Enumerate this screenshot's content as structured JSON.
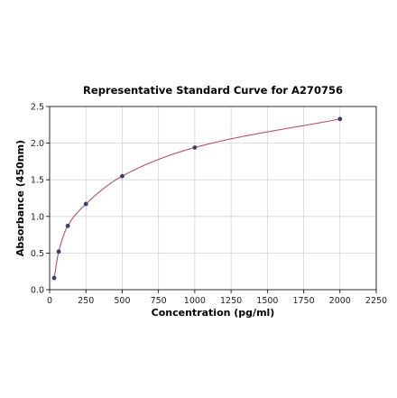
{
  "chart_data": {
    "type": "scatter",
    "title": "Representative Standard Curve for A270756",
    "xlabel": "Concentration (pg/ml)",
    "ylabel": "Absorbance (450nm)",
    "xlim": [
      0,
      2250
    ],
    "ylim": [
      0,
      2.5
    ],
    "xticks": [
      "0",
      "250",
      "500",
      "750",
      "1000",
      "1250",
      "1500",
      "1750",
      "2000",
      "2250"
    ],
    "yticks": [
      "0.0",
      "0.5",
      "1.0",
      "1.5",
      "2.0",
      "2.5"
    ],
    "grid": true,
    "x": [
      31.25,
      62.5,
      125,
      250,
      500,
      1000,
      2000
    ],
    "y": [
      0.16,
      0.52,
      0.87,
      1.17,
      1.55,
      1.94,
      2.33
    ],
    "fit_curve": true,
    "colors": {
      "points": "#3b3f6e",
      "curve": "#b5536b",
      "grid": "#d3d3d3",
      "axis": "#000000"
    }
  }
}
